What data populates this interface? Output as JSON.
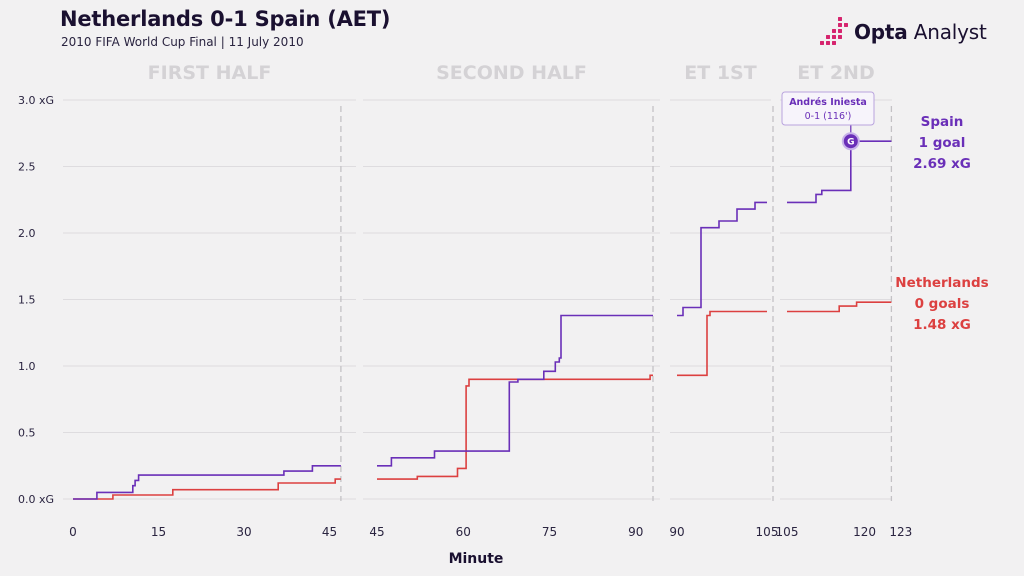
{
  "header": {
    "title": "Netherlands 0-1 Spain (AET)",
    "subtitle": "2010 FIFA World Cup Final | 11 July 2010"
  },
  "brand": {
    "name_bold": "Opta",
    "name_rest": " Analyst",
    "logo_icon": "opta-dot-grid-icon",
    "accent_color": "#d6246e"
  },
  "chart_data": {
    "type": "line",
    "step": true,
    "xlabel": "Minute",
    "ylabel": "",
    "ylim": [
      0,
      3.0
    ],
    "yticks": [
      {
        "value": 0.0,
        "label": "0.0 xG"
      },
      {
        "value": 0.5,
        "label": "0.5"
      },
      {
        "value": 1.0,
        "label": "1.0"
      },
      {
        "value": 1.5,
        "label": "1.5"
      },
      {
        "value": 2.0,
        "label": "2.0"
      },
      {
        "value": 2.5,
        "label": "2.5"
      },
      {
        "value": 3.0,
        "label": "3.0 xG"
      }
    ],
    "grid": true,
    "periods": [
      {
        "label": "FIRST HALF",
        "range": [
          0,
          47
        ],
        "ticks": [
          0,
          15,
          30,
          45
        ]
      },
      {
        "label": "SECOND HALF",
        "range": [
          45,
          93
        ],
        "ticks": [
          45,
          60,
          75,
          90
        ]
      },
      {
        "label": "ET 1ST",
        "range": [
          90,
          106
        ],
        "ticks": [
          90,
          105
        ]
      },
      {
        "label": "ET 2ND",
        "range": [
          105,
          123
        ],
        "ticks": [
          105,
          120,
          123
        ]
      }
    ],
    "series": [
      {
        "name": "Spain",
        "color": "#6a2fb8",
        "legend": {
          "name": "Spain",
          "goals": "1 goal",
          "xg": "2.69 xG"
        },
        "periods": [
          [
            [
              0,
              0.0
            ],
            [
              4.2,
              0.0
            ],
            [
              4.2,
              0.05
            ],
            [
              10.5,
              0.05
            ],
            [
              10.5,
              0.1
            ],
            [
              10.9,
              0.1
            ],
            [
              10.9,
              0.14
            ],
            [
              11.5,
              0.14
            ],
            [
              11.5,
              0.18
            ],
            [
              37,
              0.18
            ],
            [
              37,
              0.21
            ],
            [
              42,
              0.21
            ],
            [
              42,
              0.25
            ],
            [
              47,
              0.25
            ]
          ],
          [
            [
              45,
              0.25
            ],
            [
              47.5,
              0.25
            ],
            [
              47.5,
              0.31
            ],
            [
              55,
              0.31
            ],
            [
              55,
              0.36
            ],
            [
              68,
              0.36
            ],
            [
              68,
              0.88
            ],
            [
              69.5,
              0.88
            ],
            [
              69.5,
              0.9
            ],
            [
              74,
              0.9
            ],
            [
              74,
              0.96
            ],
            [
              76,
              0.96
            ],
            [
              76,
              1.03
            ],
            [
              76.7,
              1.03
            ],
            [
              76.7,
              1.06
            ],
            [
              77,
              1.06
            ],
            [
              77,
              1.38
            ],
            [
              93,
              1.38
            ]
          ],
          [
            [
              90,
              1.38
            ],
            [
              91,
              1.38
            ],
            [
              91,
              1.44
            ],
            [
              94,
              1.44
            ],
            [
              94,
              2.04
            ],
            [
              97,
              2.04
            ],
            [
              97,
              2.09
            ],
            [
              100,
              2.09
            ],
            [
              100,
              2.18
            ],
            [
              103,
              2.18
            ],
            [
              103,
              2.23
            ],
            [
              105,
              2.23
            ]
          ],
          [
            [
              105,
              2.23
            ],
            [
              110,
              2.23
            ],
            [
              110,
              2.29
            ],
            [
              111,
              2.29
            ],
            [
              111,
              2.32
            ],
            [
              116,
              2.32
            ],
            [
              116,
              2.69
            ],
            [
              123,
              2.69
            ]
          ]
        ]
      },
      {
        "name": "Netherlands",
        "color": "#dc4040",
        "legend": {
          "name": "Netherlands",
          "goals": "0 goals",
          "xg": "1.48 xG"
        },
        "periods": [
          [
            [
              0,
              0.0
            ],
            [
              7,
              0.0
            ],
            [
              7,
              0.03
            ],
            [
              17.5,
              0.03
            ],
            [
              17.5,
              0.07
            ],
            [
              36,
              0.07
            ],
            [
              36,
              0.12
            ],
            [
              46,
              0.12
            ],
            [
              46,
              0.15
            ],
            [
              47,
              0.15
            ]
          ],
          [
            [
              45,
              0.15
            ],
            [
              52,
              0.15
            ],
            [
              52,
              0.17
            ],
            [
              59,
              0.17
            ],
            [
              59,
              0.23
            ],
            [
              60.5,
              0.23
            ],
            [
              60.5,
              0.85
            ],
            [
              61,
              0.85
            ],
            [
              61,
              0.9
            ],
            [
              92.5,
              0.9
            ],
            [
              92.5,
              0.93
            ],
            [
              93,
              0.93
            ]
          ],
          [
            [
              90,
              0.93
            ],
            [
              95,
              0.93
            ],
            [
              95,
              1.38
            ],
            [
              95.5,
              1.38
            ],
            [
              95.5,
              1.41
            ],
            [
              105,
              1.41
            ]
          ],
          [
            [
              105,
              1.41
            ],
            [
              114,
              1.41
            ],
            [
              114,
              1.45
            ],
            [
              117,
              1.45
            ],
            [
              117,
              1.48
            ],
            [
              123,
              1.48
            ]
          ]
        ]
      }
    ],
    "annotations": [
      {
        "series": "Spain",
        "x": 116,
        "y": 2.69,
        "marker": "G",
        "line1": "Andrés Iniesta",
        "line2": "0-1 (116')"
      }
    ]
  }
}
